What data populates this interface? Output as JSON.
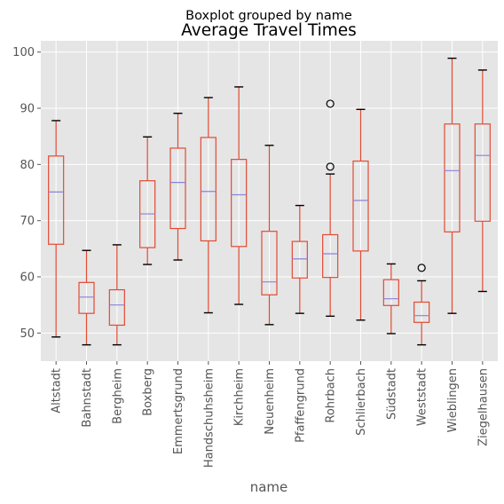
{
  "chart_data": {
    "type": "boxplot",
    "suptitle": "Boxplot grouped by name",
    "title": "Average Travel Times",
    "xlabel": "name",
    "ylabel": "",
    "ylim": [
      45,
      102
    ],
    "yticks": [
      50,
      60,
      70,
      80,
      90,
      100
    ],
    "grid": true,
    "colors": {
      "background": "#e5e5e5",
      "grid": "#ffffff",
      "box": "#e24a33",
      "median": "#8c82d6",
      "cap": "#000000",
      "flier": "#000000",
      "tick_text": "#555555"
    },
    "categories": [
      "Altstadt",
      "Bahnstadt",
      "Bergheim",
      "Boxberg",
      "Emmertsgrund",
      "Handschuhsheim",
      "Kirchheim",
      "Neuenheim",
      "Pfaffengrund",
      "Rohrbach",
      "Schlierbach",
      "Südstadt",
      "Weststadt",
      "Wieblingen",
      "Ziegelhausen"
    ],
    "boxes": [
      {
        "whislo": 49.3,
        "q1": 65.8,
        "med": 75.1,
        "q3": 81.5,
        "whishi": 87.8,
        "fliers": []
      },
      {
        "whislo": 47.9,
        "q1": 53.5,
        "med": 56.4,
        "q3": 59.0,
        "whishi": 64.7,
        "fliers": []
      },
      {
        "whislo": 47.9,
        "q1": 51.4,
        "med": 55.0,
        "q3": 57.7,
        "whishi": 65.7,
        "fliers": []
      },
      {
        "whislo": 62.2,
        "q1": 65.2,
        "med": 71.2,
        "q3": 77.1,
        "whishi": 84.9,
        "fliers": []
      },
      {
        "whislo": 63.0,
        "q1": 68.6,
        "med": 76.8,
        "q3": 82.9,
        "whishi": 89.1,
        "fliers": []
      },
      {
        "whislo": 53.6,
        "q1": 66.4,
        "med": 75.2,
        "q3": 84.8,
        "whishi": 91.9,
        "fliers": []
      },
      {
        "whislo": 55.1,
        "q1": 65.4,
        "med": 74.6,
        "q3": 80.9,
        "whishi": 93.8,
        "fliers": []
      },
      {
        "whislo": 51.5,
        "q1": 56.8,
        "med": 59.1,
        "q3": 68.1,
        "whishi": 83.4,
        "fliers": []
      },
      {
        "whislo": 53.5,
        "q1": 59.8,
        "med": 63.2,
        "q3": 66.3,
        "whishi": 72.7,
        "fliers": []
      },
      {
        "whislo": 53.0,
        "q1": 59.9,
        "med": 64.1,
        "q3": 67.5,
        "whishi": 78.3,
        "fliers": [
          79.6,
          90.8
        ]
      },
      {
        "whislo": 52.3,
        "q1": 64.6,
        "med": 73.6,
        "q3": 80.6,
        "whishi": 89.8,
        "fliers": []
      },
      {
        "whislo": 49.9,
        "q1": 54.9,
        "med": 56.1,
        "q3": 59.5,
        "whishi": 62.3,
        "fliers": []
      },
      {
        "whislo": 47.9,
        "q1": 51.9,
        "med": 53.1,
        "q3": 55.5,
        "whishi": 59.3,
        "fliers": [
          61.6
        ]
      },
      {
        "whislo": 53.5,
        "q1": 68.0,
        "med": 78.9,
        "q3": 87.2,
        "whishi": 98.9,
        "fliers": []
      },
      {
        "whislo": 57.4,
        "q1": 69.9,
        "med": 81.6,
        "q3": 87.2,
        "whishi": 96.8,
        "fliers": []
      }
    ]
  }
}
